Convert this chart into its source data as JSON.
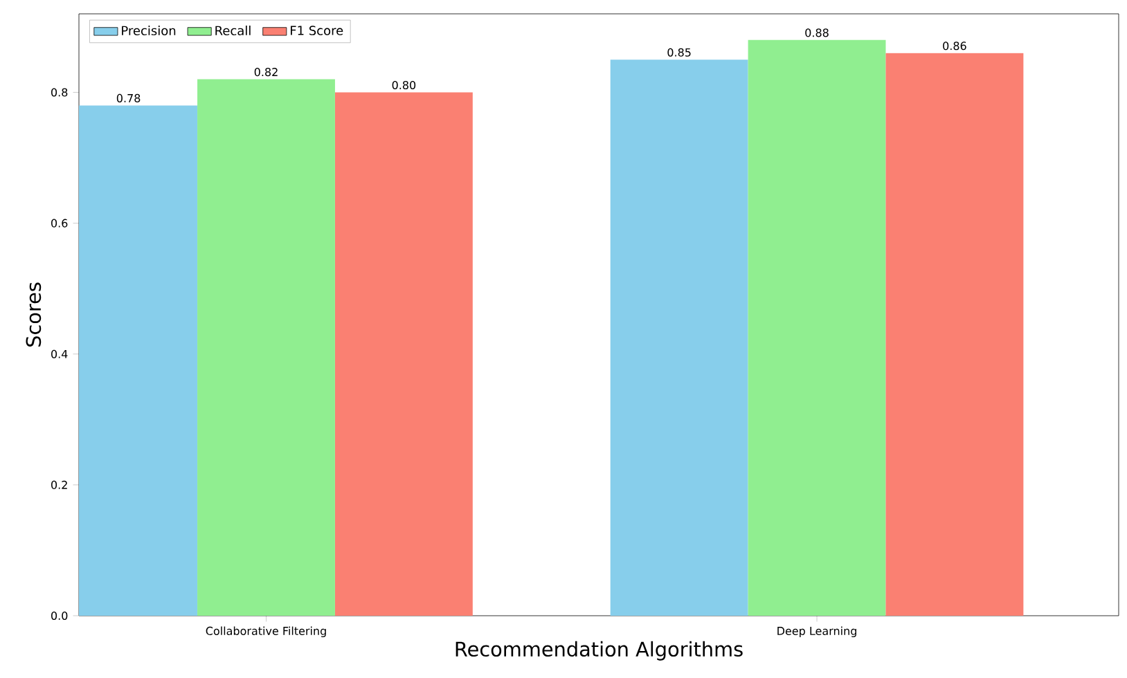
{
  "chart_data": {
    "type": "bar",
    "xlabel": "Recommendation Algorithms",
    "ylabel": "Scores",
    "categories": [
      "Collaborative Filtering",
      "Deep Learning"
    ],
    "series": [
      {
        "name": "Precision",
        "color": "#87ceeb",
        "values": [
          0.78,
          0.85
        ],
        "value_labels": [
          "0.78",
          "0.85"
        ]
      },
      {
        "name": "Recall",
        "color": "#90ee90",
        "values": [
          0.82,
          0.88
        ],
        "value_labels": [
          "0.82",
          "0.88"
        ]
      },
      {
        "name": "F1 Score",
        "color": "#fa8072",
        "values": [
          0.8,
          0.86
        ],
        "value_labels": [
          "0.80",
          "0.86"
        ]
      }
    ],
    "ylim": [
      0,
      0.92
    ],
    "yticks": [
      {
        "value": 0,
        "label": "0.0"
      },
      0.2,
      0.4,
      0.6,
      0.8
    ],
    "legend": "top left"
  }
}
